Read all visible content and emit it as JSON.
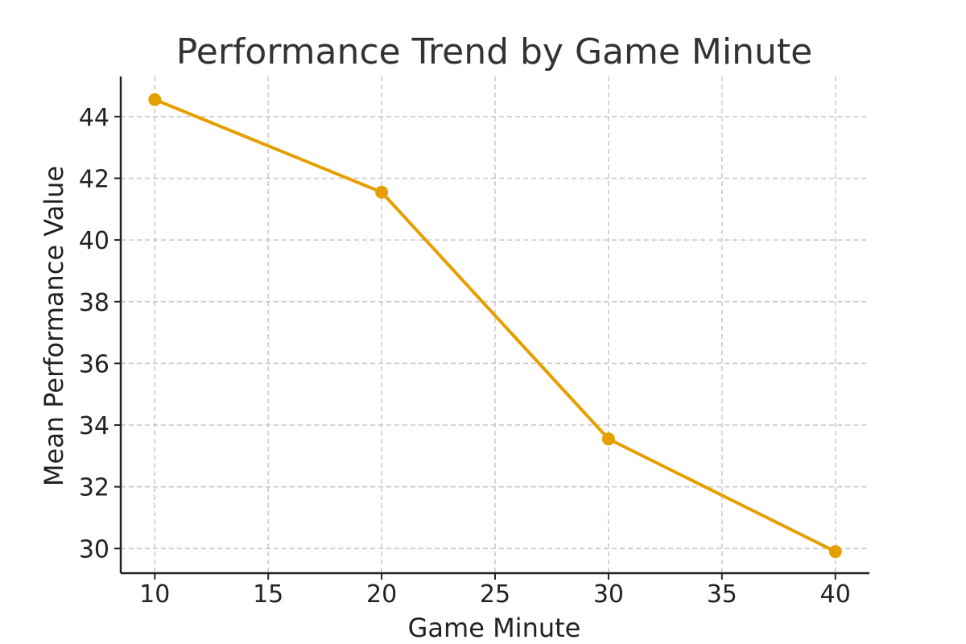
{
  "chart_data": {
    "type": "line",
    "title": "Performance Trend by Game Minute",
    "xlabel": "Game Minute",
    "ylabel": "Mean Performance Value",
    "x": [
      10,
      20,
      30,
      40
    ],
    "series": [
      {
        "values": [
          44.55,
          41.55,
          33.55,
          29.9
        ],
        "color": "#E69F00"
      }
    ],
    "xlim": [
      8.5,
      41.5
    ],
    "ylim": [
      29.2,
      45.3
    ],
    "xticks": [
      10,
      15,
      20,
      25,
      30,
      35,
      40
    ],
    "yticks": [
      30,
      32,
      34,
      36,
      38,
      40,
      42,
      44
    ],
    "grid": true
  }
}
